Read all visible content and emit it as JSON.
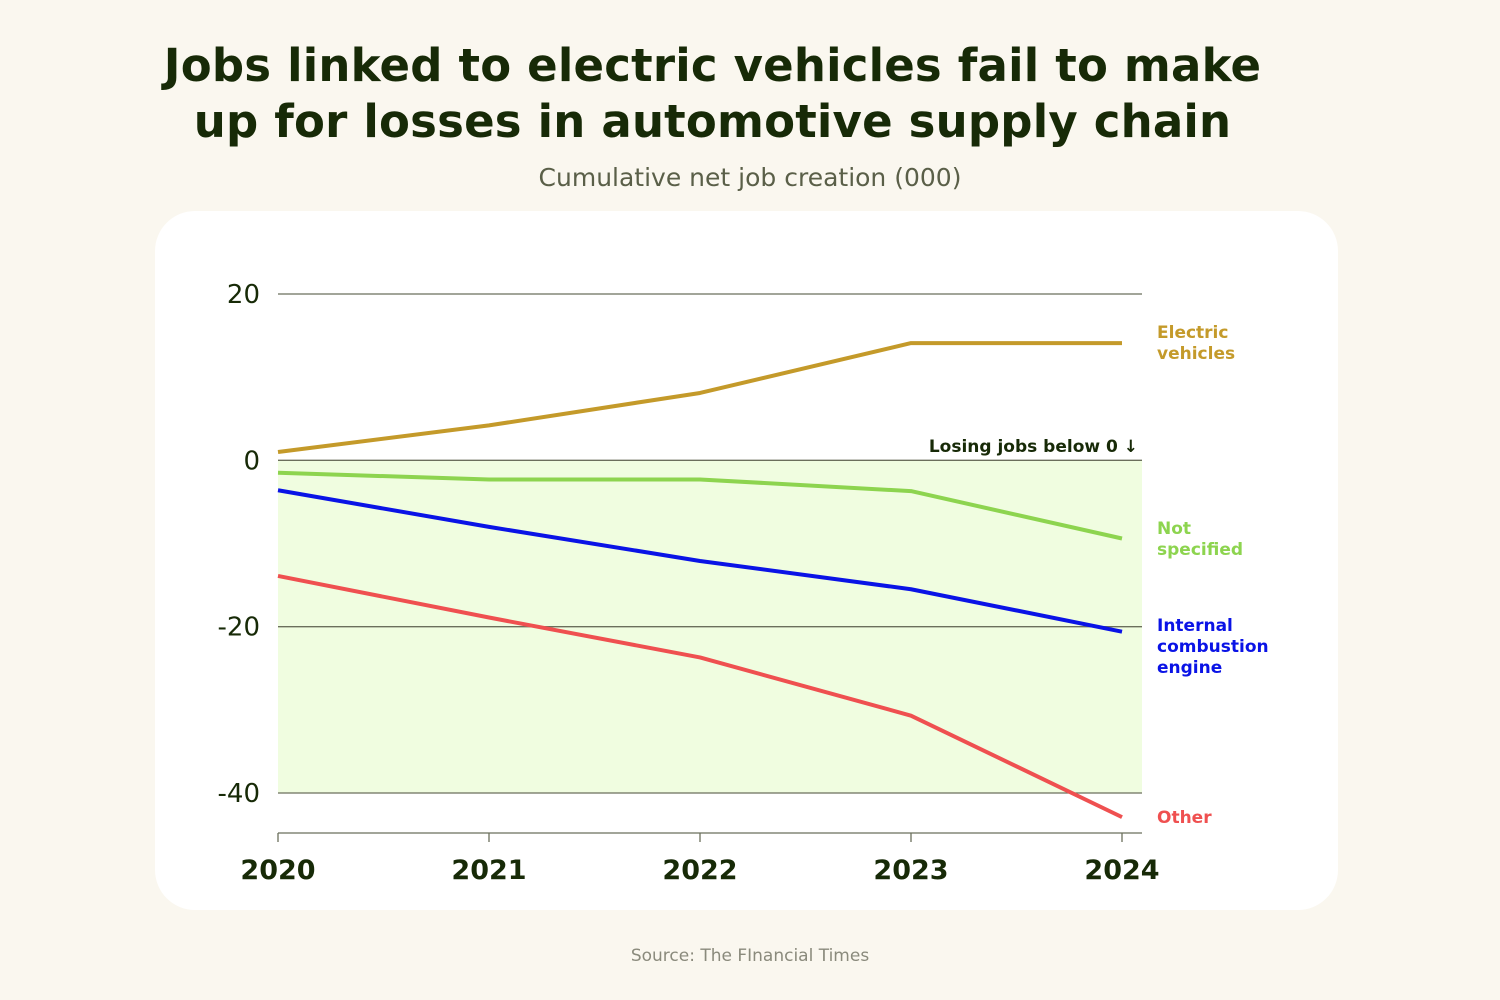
{
  "title_lines": [
    "Jobs linked to electric vehicles fail to make",
    "up for losses in automotive supply chain"
  ],
  "subtitle": "Cumulative net job creation (000)",
  "source": "Source: The FInancial Times",
  "chart_data": {
    "type": "line",
    "title": "Jobs linked to electric vehicles fail to make up for losses in automotive supply chain",
    "subtitle": "Cumulative net job creation (000)",
    "xlabel": "",
    "ylabel": "",
    "x": [
      2020,
      2021,
      2022,
      2023,
      2024
    ],
    "x_tick_labels": [
      "2020",
      "2021",
      "2022",
      "2023",
      "2024"
    ],
    "y_ticks": [
      20,
      0,
      -20,
      -40
    ],
    "y_tick_labels": [
      "20",
      "0",
      "-20",
      "-40"
    ],
    "ylim": [
      -45,
      20
    ],
    "grid": true,
    "shaded_region": {
      "from": -40,
      "to": 0,
      "color": "#f0fde0"
    },
    "annotation": "Losing jobs below 0 ↓",
    "series": [
      {
        "name": "Electric vehicles",
        "label_lines": [
          "Electric",
          "vehicles"
        ],
        "color": "#c49a2a",
        "values": [
          1,
          4.2,
          8.1,
          14.1,
          14.1
        ]
      },
      {
        "name": "Not specified",
        "label_lines": [
          "Not",
          "specified"
        ],
        "color": "#8dd44f",
        "values": [
          -1.5,
          -2.3,
          -2.3,
          -3.7,
          -9.4
        ]
      },
      {
        "name": "Internal combustion engine",
        "label_lines": [
          "Internal",
          "combustion",
          "engine"
        ],
        "color": "#0a13e6",
        "values": [
          -3.6,
          -8,
          -12.1,
          -15.5,
          -20.6
        ]
      },
      {
        "name": "Other",
        "label_lines": [
          "Other"
        ],
        "color": "#ef5050",
        "values": [
          -13.9,
          -18.9,
          -23.7,
          -30.7,
          -42.9
        ]
      }
    ]
  }
}
